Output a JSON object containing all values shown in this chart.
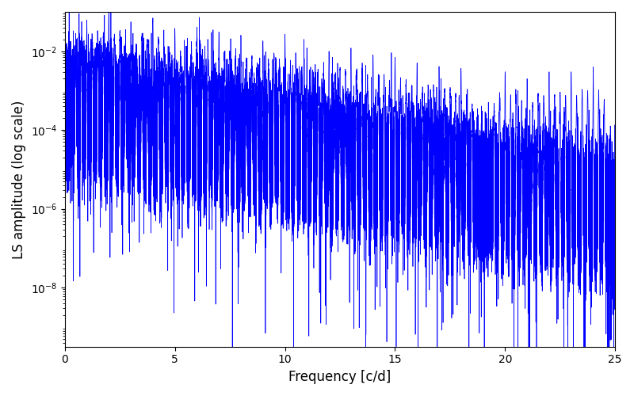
{
  "title": "",
  "xlabel": "Frequency [c/d]",
  "ylabel": "LS amplitude (log scale)",
  "xlim": [
    0,
    25
  ],
  "ylim_log": [
    -9.5,
    -1.0
  ],
  "line_color": "#0000ff",
  "line_width": 0.5,
  "bg_color": "#ffffff",
  "figsize": [
    8.0,
    5.0
  ],
  "dpi": 100,
  "yticks": [
    1e-08,
    1e-06,
    0.0001,
    0.01
  ],
  "xticks": [
    0,
    5,
    10,
    15,
    20,
    25
  ],
  "seed": 12345
}
